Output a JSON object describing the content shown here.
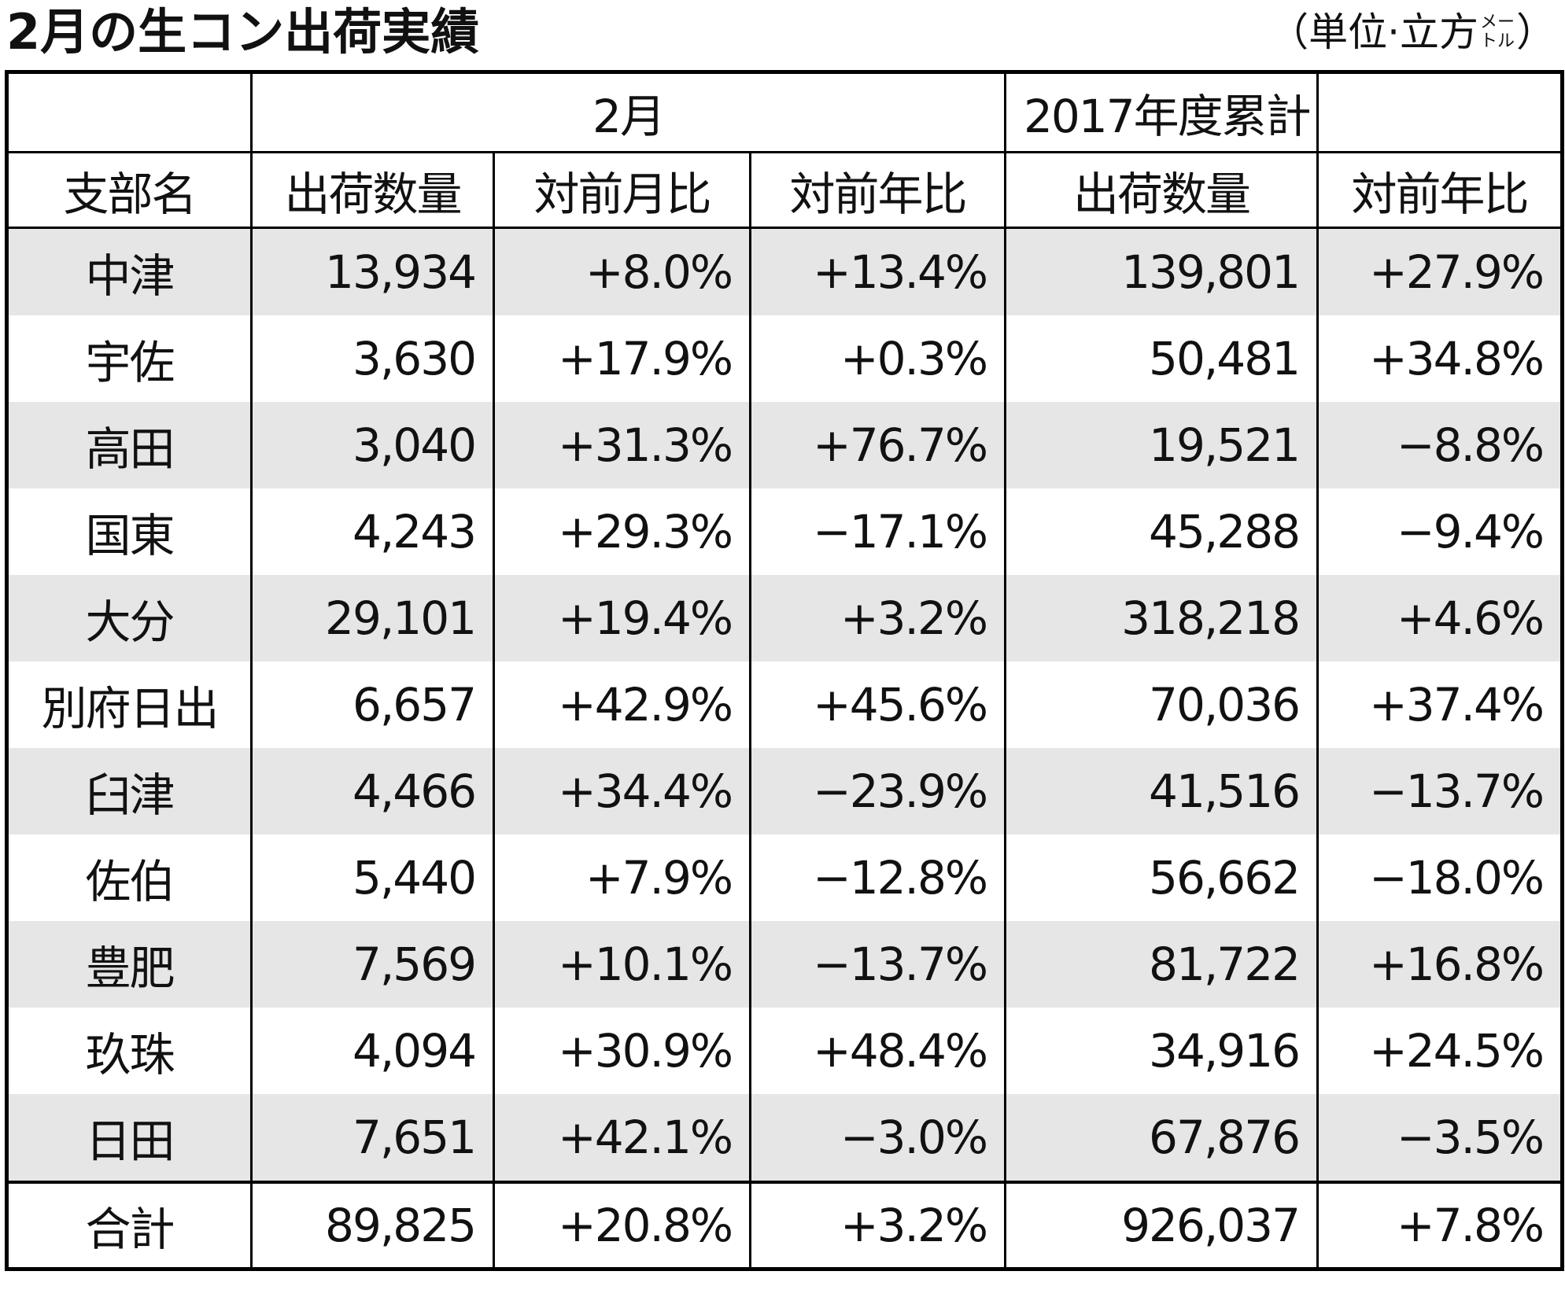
{
  "title": "2月の生コン出荷実績",
  "unit": {
    "prefix": "（単位·立方",
    "small_top": "メー",
    "small_bottom": "トル",
    "suffix": "）"
  },
  "table": {
    "group_headers": [
      "",
      "2月",
      "2017年度累計"
    ],
    "column_headers": [
      "支部名",
      "出荷数量",
      "対前月比",
      "対前年比",
      "出荷数量",
      "対前年比"
    ],
    "rows": [
      [
        "中津",
        "13,934",
        "+8.0%",
        "+13.4%",
        "139,801",
        "+27.9%"
      ],
      [
        "宇佐",
        "3,630",
        "+17.9%",
        "+0.3%",
        "50,481",
        "+34.8%"
      ],
      [
        "高田",
        "3,040",
        "+31.3%",
        "+76.7%",
        "19,521",
        "−8.8%"
      ],
      [
        "国東",
        "4,243",
        "+29.3%",
        "−17.1%",
        "45,288",
        "−9.4%"
      ],
      [
        "大分",
        "29,101",
        "+19.4%",
        "+3.2%",
        "318,218",
        "+4.6%"
      ],
      [
        "別府日出",
        "6,657",
        "+42.9%",
        "+45.6%",
        "70,036",
        "+37.4%"
      ],
      [
        "臼津",
        "4,466",
        "+34.4%",
        "−23.9%",
        "41,516",
        "−13.7%"
      ],
      [
        "佐伯",
        "5,440",
        "+7.9%",
        "−12.8%",
        "56,662",
        "−18.0%"
      ],
      [
        "豊肥",
        "7,569",
        "+10.1%",
        "−13.7%",
        "81,722",
        "+16.8%"
      ],
      [
        "玖珠",
        "4,094",
        "+30.9%",
        "+48.4%",
        "34,916",
        "+24.5%"
      ],
      [
        "日田",
        "7,651",
        "+42.1%",
        "−3.0%",
        "67,876",
        "−3.5%"
      ]
    ],
    "total": [
      "合計",
      "89,825",
      "+20.8%",
      "+3.2%",
      "926,037",
      "+7.8%"
    ]
  }
}
